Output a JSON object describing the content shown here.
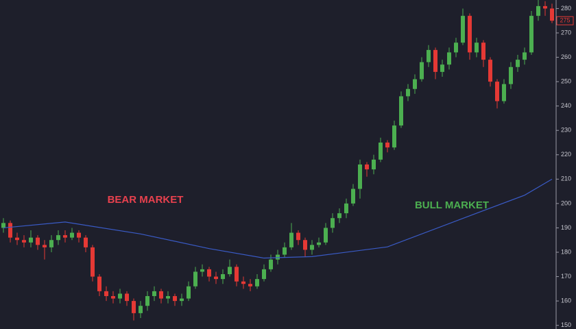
{
  "chart_data": {
    "type": "candlestick",
    "annotations": [
      {
        "text": "BEAR MARKET",
        "color": "#e8414e"
      },
      {
        "text": "BULL MARKET",
        "color": "#4caf50"
      }
    ],
    "open": [
      190,
      192,
      186,
      185,
      184,
      186,
      183,
      182,
      185,
      187,
      186,
      188,
      186,
      182,
      170,
      164,
      162,
      161,
      163,
      160,
      155,
      158,
      162,
      164,
      161,
      162,
      160,
      161,
      166,
      172,
      173,
      170,
      169,
      171,
      174,
      168,
      167,
      166,
      169,
      173,
      177,
      179,
      182,
      188,
      185,
      181,
      183,
      184,
      190,
      194,
      196,
      200,
      206,
      216,
      214,
      218,
      225,
      223,
      232,
      244,
      247,
      251,
      258,
      263,
      254,
      257,
      262,
      266,
      277,
      262,
      266,
      259,
      250,
      242,
      249,
      256,
      259,
      262,
      277,
      281,
      280
    ],
    "high": [
      194,
      193,
      188,
      187,
      189,
      187,
      185,
      187,
      189,
      189,
      190,
      189,
      187,
      183,
      171,
      166,
      164,
      165,
      164,
      161,
      160,
      164,
      166,
      165,
      164,
      163,
      163,
      168,
      174,
      175,
      174,
      172,
      173,
      177,
      175,
      170,
      169,
      171,
      175,
      179,
      181,
      184,
      192,
      189,
      186,
      185,
      186,
      192,
      196,
      198,
      202,
      208,
      218,
      217,
      220,
      227,
      226,
      234,
      246,
      249,
      253,
      260,
      265,
      264,
      259,
      264,
      268,
      280,
      278,
      268,
      267,
      260,
      251,
      251,
      258,
      261,
      264,
      279,
      284,
      283,
      282
    ],
    "low": [
      188,
      184,
      183,
      182,
      182,
      181,
      177,
      180,
      183,
      184,
      185,
      184,
      180,
      168,
      162,
      160,
      159,
      159,
      158,
      152,
      153,
      156,
      160,
      159,
      159,
      158,
      158,
      160,
      165,
      170,
      168,
      167,
      167,
      170,
      166,
      165,
      164,
      165,
      168,
      172,
      175,
      178,
      181,
      183,
      178,
      179,
      182,
      183,
      188,
      192,
      194,
      199,
      202,
      211,
      212,
      217,
      221,
      222,
      231,
      242,
      245,
      250,
      256,
      251,
      252,
      255,
      260,
      265,
      259,
      260,
      256,
      248,
      239,
      241,
      247,
      254,
      257,
      261,
      275,
      277,
      274
    ],
    "close": [
      192,
      186,
      185,
      184,
      186,
      183,
      182,
      185,
      187,
      186,
      188,
      186,
      182,
      170,
      164,
      162,
      161,
      163,
      160,
      155,
      158,
      162,
      164,
      161,
      162,
      160,
      161,
      166,
      172,
      173,
      170,
      169,
      171,
      174,
      168,
      167,
      166,
      169,
      173,
      177,
      179,
      182,
      188,
      185,
      181,
      183,
      184,
      190,
      194,
      196,
      200,
      206,
      216,
      214,
      218,
      225,
      223,
      232,
      244,
      247,
      251,
      258,
      263,
      254,
      257,
      262,
      266,
      277,
      262,
      266,
      259,
      250,
      242,
      249,
      256,
      259,
      262,
      277,
      281,
      280,
      275
    ],
    "up_color": "#4caf50",
    "down_color": "#e53935",
    "moving_average": {
      "x": [
        0,
        9,
        20,
        30,
        38,
        45,
        56,
        69,
        76,
        80
      ],
      "values": [
        190,
        192.4,
        187.5,
        181.5,
        177.6,
        178.2,
        182.2,
        196,
        203.4,
        210
      ],
      "color": "#3a5bc7"
    },
    "last_price": 275,
    "ylim": [
      148.5,
      283.5
    ],
    "yticks": [
      150,
      160,
      170,
      180,
      190,
      200,
      210,
      220,
      230,
      240,
      250,
      260,
      270,
      280
    ]
  }
}
